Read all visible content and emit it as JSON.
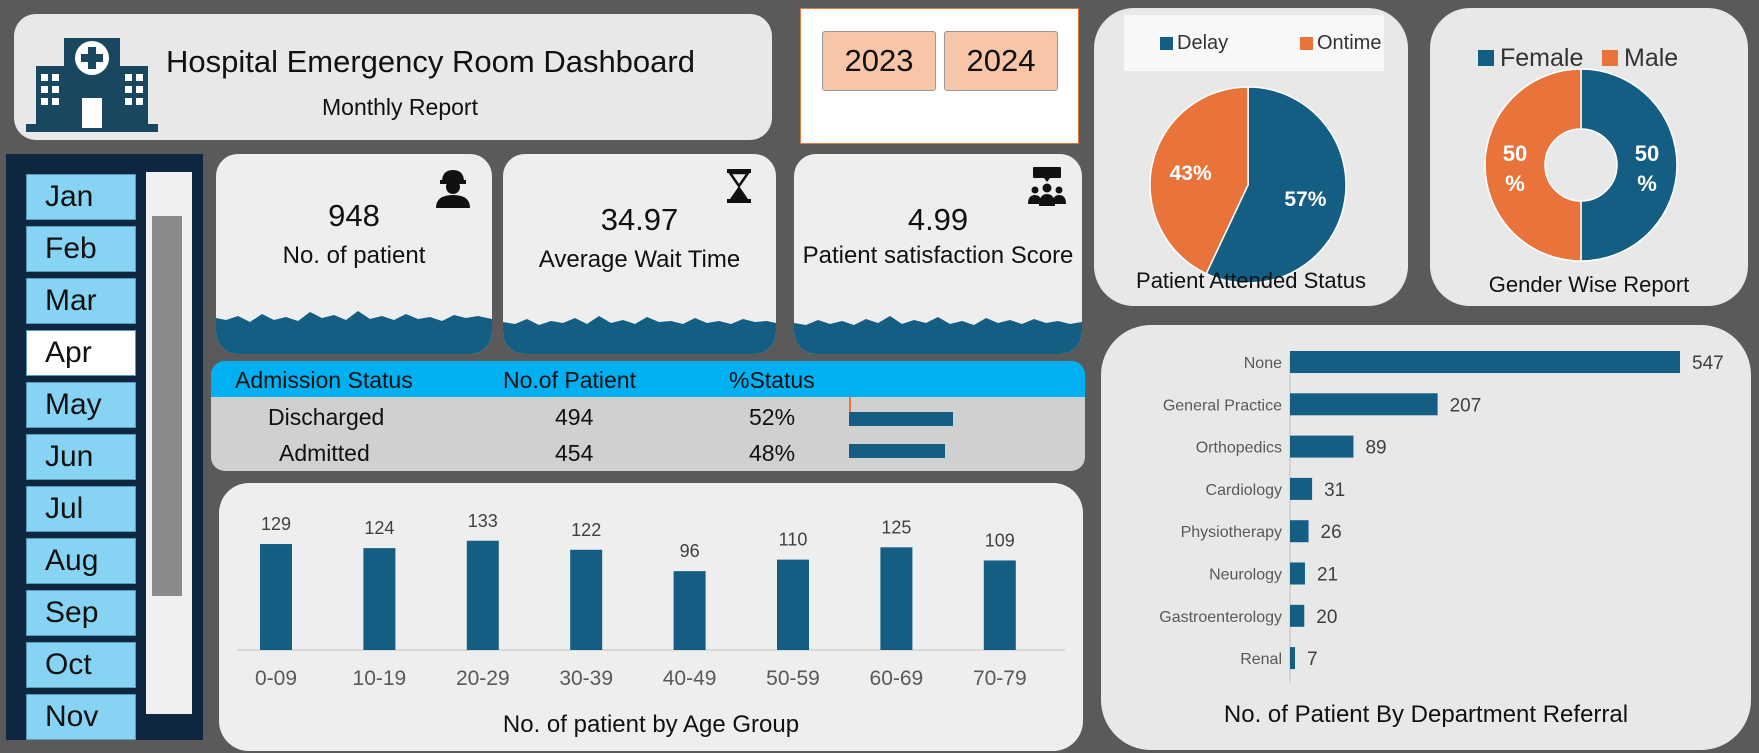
{
  "header": {
    "title": "Hospital Emergency Room Dashboard",
    "subtitle": "Monthly Report"
  },
  "year_slicer": {
    "years": [
      "2023",
      "2024"
    ]
  },
  "month_slicer": {
    "months": [
      "Jan",
      "Feb",
      "Mar",
      "Apr",
      "May",
      "Jun",
      "Jul",
      "Aug",
      "Sep",
      "Oct",
      "Nov"
    ],
    "selected": "Apr"
  },
  "kpis": {
    "patients": {
      "value": "948",
      "label": "No. of patient",
      "icon": "doctor-icon"
    },
    "wait_time": {
      "value": "34.97",
      "label": "Average Wait Time",
      "icon": "hourglass-icon"
    },
    "satisfaction": {
      "value": "4.99",
      "label": "Patient satisfaction Score",
      "icon": "group-icon"
    }
  },
  "admission": {
    "headers": [
      "Admission Status",
      "No.of Patient",
      "%Status"
    ],
    "rows": [
      {
        "status": "Discharged",
        "count": "494",
        "pct_label": "52%",
        "pct": 0.52
      },
      {
        "status": "Admitted",
        "count": "454",
        "pct_label": "48%",
        "pct": 0.48
      }
    ]
  },
  "colors": {
    "primary": "#135e82",
    "accent": "#e8743b",
    "header_blue": "#00b0f0",
    "slicer_blue": "#87d3f3",
    "year_button": "#f7c6a8",
    "slicer_bg": "#0f2640"
  },
  "chart_data": [
    {
      "type": "bar",
      "title": "No. of patient by Age Group",
      "categories": [
        "0-09",
        "10-19",
        "20-29",
        "30-39",
        "40-49",
        "50-59",
        "60-69",
        "70-79"
      ],
      "values": [
        129,
        124,
        133,
        122,
        96,
        110,
        125,
        109
      ],
      "ylim": [
        0,
        140
      ]
    },
    {
      "type": "pie",
      "title": "Patient Attended Status",
      "labels": [
        "Delay",
        "Ontime"
      ],
      "values": [
        57,
        43
      ],
      "value_labels": [
        "57%",
        "43%"
      ],
      "legend": "top"
    },
    {
      "type": "pie",
      "title": "Gender Wise Report",
      "labels": [
        "Female",
        "Male"
      ],
      "values": [
        50,
        50
      ],
      "value_labels": [
        "50 %",
        "50 %"
      ],
      "legend": "top"
    },
    {
      "type": "bar",
      "orientation": "horizontal",
      "title": "No. of Patient By Department Referral",
      "categories": [
        "None",
        "General Practice",
        "Orthopedics",
        "Cardiology",
        "Physiotherapy",
        "Neurology",
        "Gastroenterology",
        "Renal"
      ],
      "values": [
        547,
        207,
        89,
        31,
        26,
        21,
        20,
        7
      ]
    }
  ]
}
